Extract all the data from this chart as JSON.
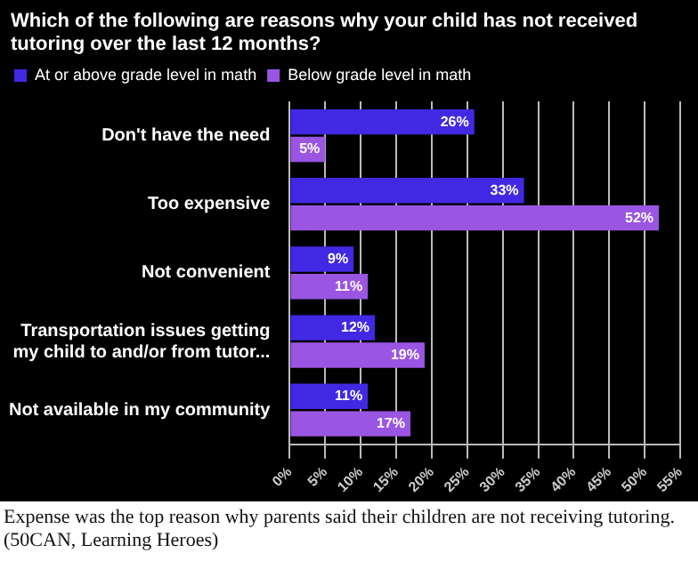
{
  "chart_data": {
    "type": "bar",
    "orientation": "horizontal",
    "title": "Which of the following are reasons why your child has not received tutoring over the last 12 months?",
    "categories": [
      "Don't have the need",
      "Too expensive",
      "Not convenient",
      "Transportation issues getting my child to and/or from tutor...",
      "Not available in my community"
    ],
    "series": [
      {
        "name": "At or above grade level in math",
        "color": "#4129e3",
        "values": [
          26,
          33,
          9,
          12,
          11
        ],
        "value_labels": [
          "26%",
          "33%",
          "9%",
          "12%",
          "11%"
        ]
      },
      {
        "name": "Below grade level in math",
        "color": "#9a55e3",
        "values": [
          5,
          52,
          11,
          19,
          17
        ],
        "value_labels": [
          "5%",
          "52%",
          "11%",
          "19%",
          "17%"
        ]
      }
    ],
    "xlim": [
      0,
      55
    ],
    "xticks": [
      {
        "value": 0,
        "label": "0%"
      },
      {
        "value": 5,
        "label": "5%"
      },
      {
        "value": 10,
        "label": "10%"
      },
      {
        "value": 15,
        "label": "15%"
      },
      {
        "value": 20,
        "label": "20%"
      },
      {
        "value": 25,
        "label": "25%"
      },
      {
        "value": 30,
        "label": "30%"
      },
      {
        "value": 35,
        "label": "35%"
      },
      {
        "value": 40,
        "label": "40%"
      },
      {
        "value": 45,
        "label": "45%"
      },
      {
        "value": 50,
        "label": "50%"
      },
      {
        "value": 55,
        "label": "55%"
      }
    ],
    "grid": "x",
    "legend": "top left",
    "annotations": [
      "Expense was the top reason why parents said their children are not receiving tutoring. (50CAN, Learning Heroes)"
    ]
  }
}
